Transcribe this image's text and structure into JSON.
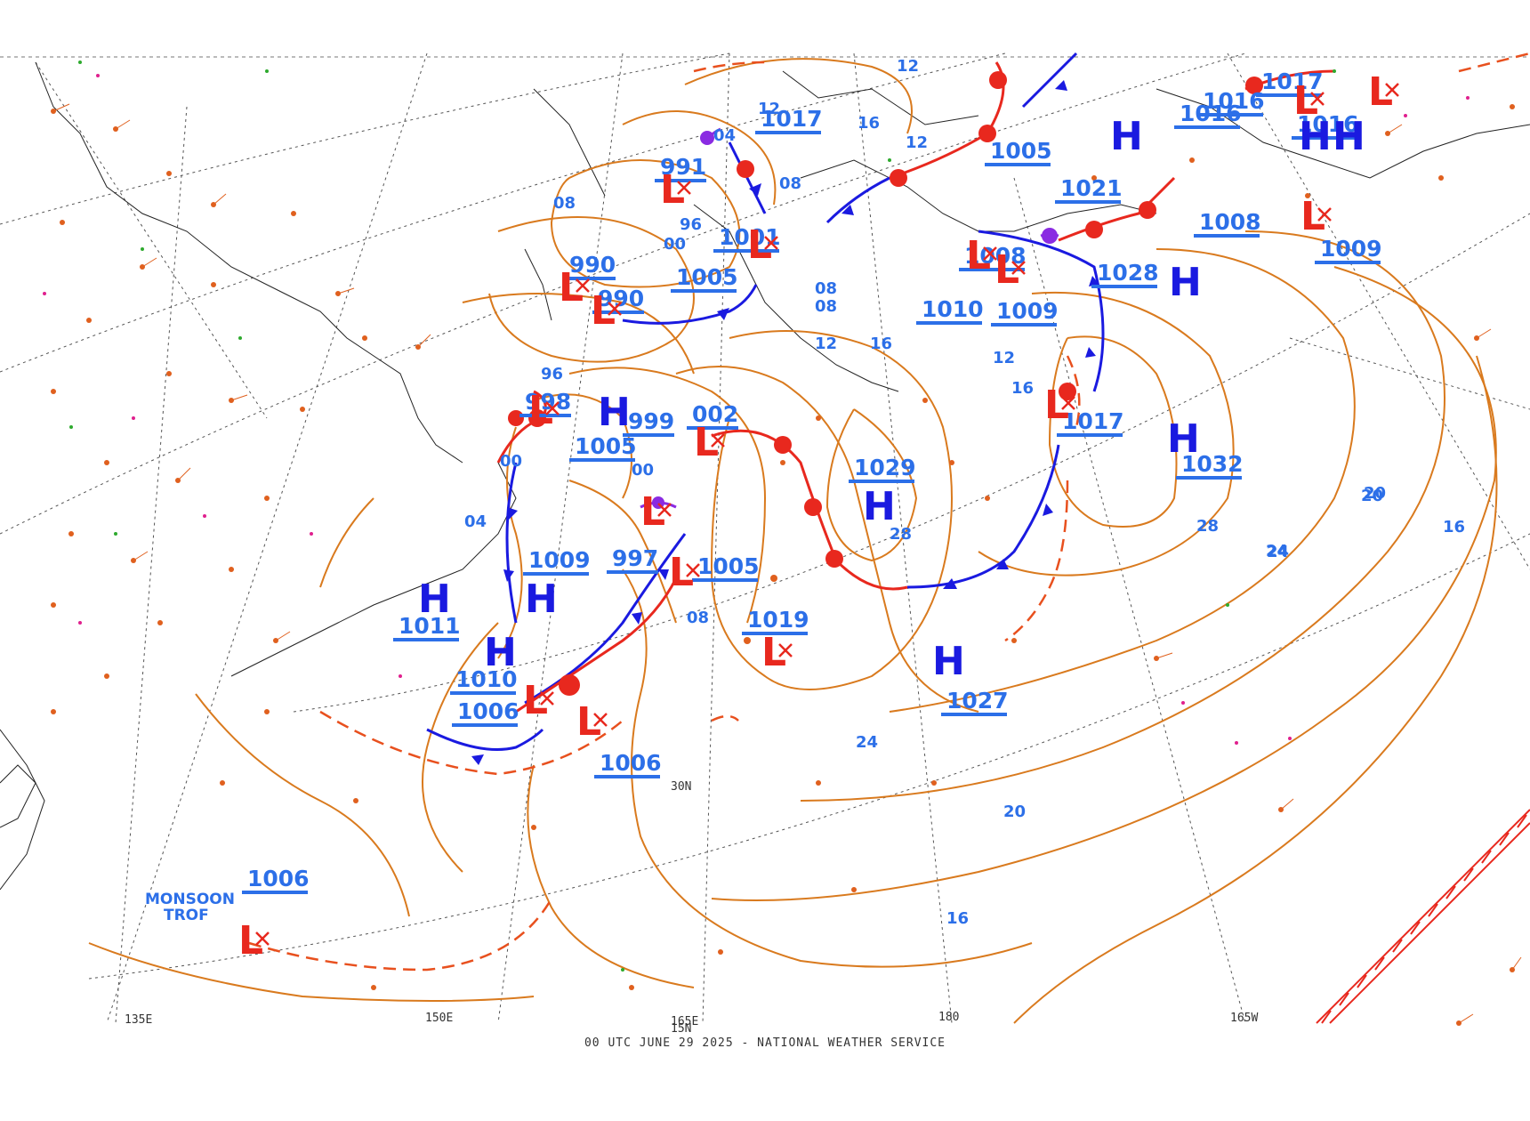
{
  "footer": {
    "caption": "00 UTC JUNE 29 2025 - NATIONAL WEATHER SERVICE"
  },
  "colors": {
    "background": "#ffffff",
    "isobar": "#d97a1e",
    "pressure_label": "#2c6fe8",
    "high": "#1a1ae0",
    "low": "#e8281e",
    "cold_front": "#1a1ae0",
    "warm_front": "#e8281e",
    "occluded_front": "#8a2be2",
    "grid": "#555555",
    "coastline": "#222222",
    "station_temp": "#e0208e",
    "station_dew": "#2eaa2e",
    "station_plot": "#e0601e"
  },
  "grid_labels": {
    "lon_150e": "150E",
    "lon_165e": "165E",
    "lon_180": "180",
    "lon_165w": "165W",
    "lon_135e": "135E",
    "lat_30n": "30N",
    "lat_15n": "15N"
  },
  "annotations": {
    "monsoon_line1": "MONSOON",
    "monsoon_line2": "TROF"
  },
  "pressure_labels": [
    "1017",
    "1016",
    "1016",
    "1017",
    "1016",
    "1005",
    "1021",
    "991",
    "1001",
    "1005",
    "990",
    "990",
    "1008",
    "1009",
    "1010",
    "1028",
    "1008",
    "1009",
    "998",
    "999",
    "002",
    "1005",
    "1017",
    "1029",
    "1032",
    "1009",
    "997",
    "1005",
    "1019",
    "1011",
    "1010",
    "1006",
    "1006",
    "1027",
    "1006"
  ],
  "isobar_labels": [
    "12",
    "12",
    "16",
    "12",
    "08",
    "08",
    "04",
    "08",
    "96",
    "08",
    "12",
    "16",
    "12",
    "16",
    "00",
    "96",
    "00",
    "00",
    "04",
    "08",
    "28",
    "20",
    "16",
    "24",
    "28",
    "24",
    "20",
    "16",
    "20",
    "24"
  ],
  "centers": {
    "high": "H",
    "low": "L"
  }
}
